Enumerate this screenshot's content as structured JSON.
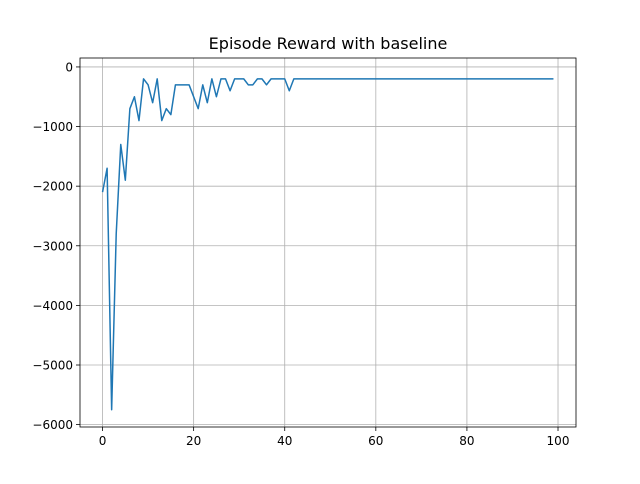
{
  "chart_data": {
    "type": "line",
    "title": "Episode Reward with baseline",
    "xlabel": "",
    "ylabel": "",
    "xlim": [
      -4.95,
      103.95
    ],
    "ylim": [
      -6040,
      150
    ],
    "grid": true,
    "x_ticks": [
      0,
      20,
      40,
      60,
      80,
      100
    ],
    "y_ticks": [
      0,
      -1000,
      -2000,
      -3000,
      -4000,
      -5000,
      -6000
    ],
    "x_tick_labels": [
      "0",
      "20",
      "40",
      "60",
      "80",
      "100"
    ],
    "y_tick_labels": [
      "0",
      "−1000",
      "−2000",
      "−3000",
      "−4000",
      "−5000",
      "−6000"
    ],
    "line_color": "#1f77b4",
    "series": [
      {
        "name": "",
        "x": [
          0,
          1,
          2,
          3,
          4,
          5,
          6,
          7,
          8,
          9,
          10,
          11,
          12,
          13,
          14,
          15,
          16,
          17,
          18,
          19,
          20,
          21,
          22,
          23,
          24,
          25,
          26,
          27,
          28,
          29,
          30,
          31,
          32,
          33,
          34,
          35,
          36,
          37,
          38,
          39,
          40,
          41,
          42,
          43,
          44,
          45,
          46,
          47,
          48,
          49,
          50,
          51,
          52,
          53,
          54,
          55,
          56,
          57,
          58,
          59,
          60,
          61,
          62,
          63,
          64,
          65,
          66,
          67,
          68,
          69,
          70,
          71,
          72,
          73,
          74,
          75,
          76,
          77,
          78,
          79,
          80,
          81,
          82,
          83,
          84,
          85,
          86,
          87,
          88,
          89,
          90,
          91,
          92,
          93,
          94,
          95,
          96,
          97,
          98,
          99
        ],
        "y": [
          -2100,
          -1700,
          -5750,
          -2800,
          -1300,
          -1900,
          -700,
          -500,
          -900,
          -200,
          -300,
          -600,
          -200,
          -900,
          -700,
          -800,
          -300,
          -300,
          -300,
          -300,
          -500,
          -700,
          -300,
          -600,
          -200,
          -500,
          -200,
          -200,
          -400,
          -200,
          -200,
          -200,
          -300,
          -300,
          -200,
          -200,
          -300,
          -200,
          -200,
          -200,
          -200,
          -400,
          -200,
          -200,
          -200,
          -200,
          -200,
          -200,
          -200,
          -200,
          -200,
          -200,
          -200,
          -200,
          -200,
          -200,
          -200,
          -200,
          -200,
          -200,
          -200,
          -200,
          -200,
          -200,
          -200,
          -200,
          -200,
          -200,
          -200,
          -200,
          -200,
          -200,
          -200,
          -200,
          -200,
          -200,
          -200,
          -200,
          -200,
          -200,
          -200,
          -200,
          -200,
          -200,
          -200,
          -200,
          -200,
          -200,
          -200,
          -200,
          -200,
          -200,
          -200,
          -200,
          -200,
          -200,
          -200,
          -200,
          -200,
          -200
        ]
      }
    ]
  }
}
